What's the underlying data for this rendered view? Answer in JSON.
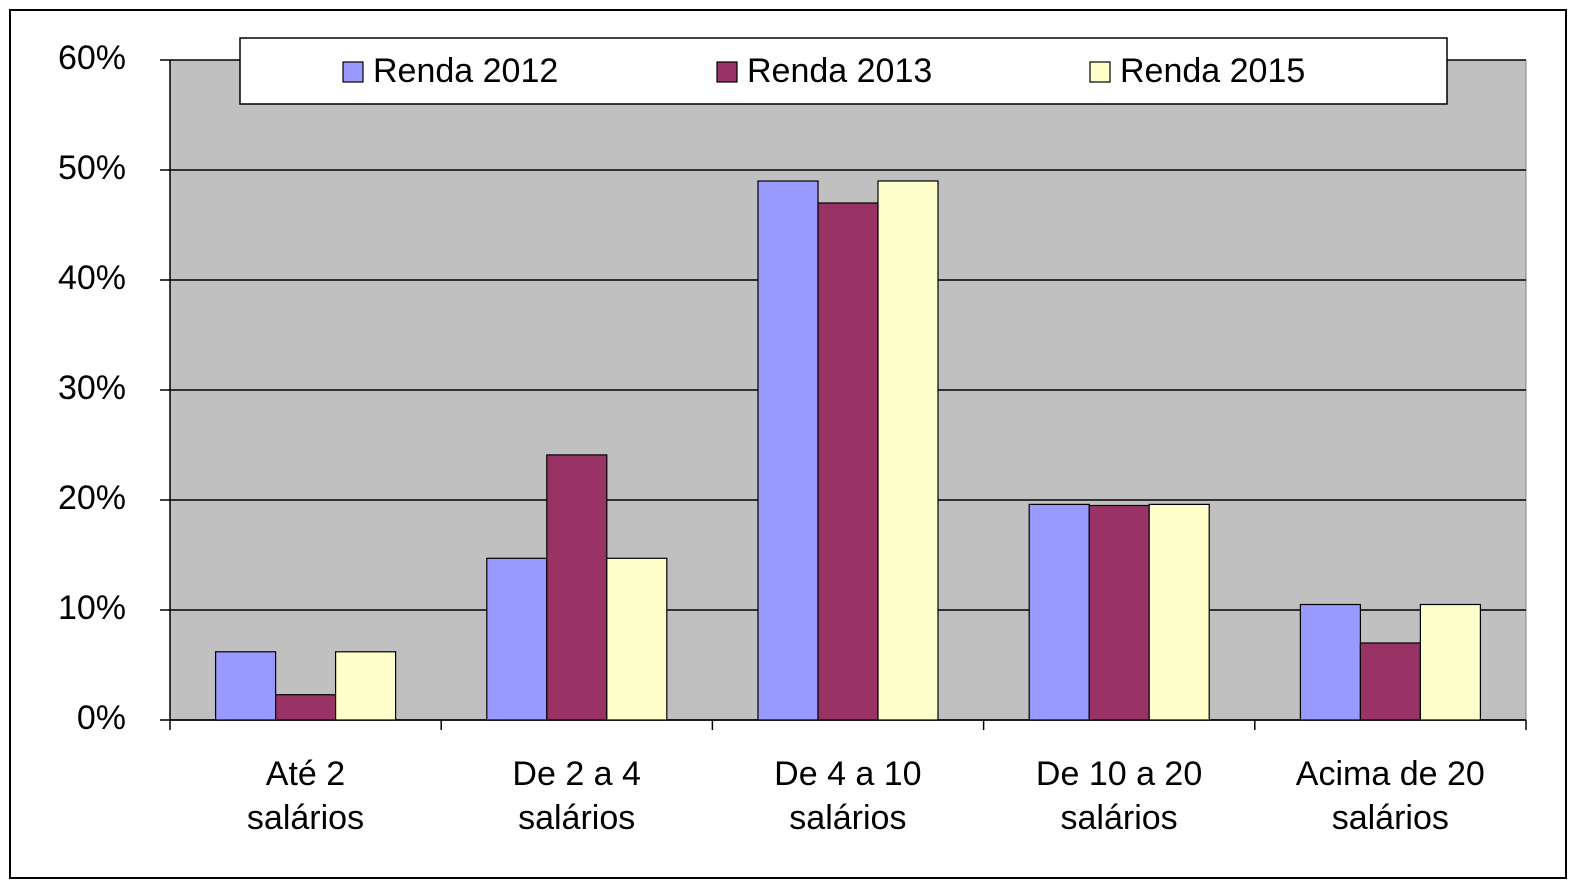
{
  "chart_data": {
    "type": "bar",
    "categories": [
      "Até 2\nsalários",
      "De 2 a 4\nsalários",
      "De 4 a 10\nsalários",
      "De 10 a 20\nsalários",
      "Acima de 20\nsalários"
    ],
    "series": [
      {
        "name": "Renda 2012",
        "color": "#9999ff",
        "values": [
          6.2,
          14.7,
          49,
          19.6,
          10.5
        ]
      },
      {
        "name": "Renda 2013",
        "color": "#993366",
        "values": [
          2.3,
          24.1,
          47,
          19.5,
          7
        ]
      },
      {
        "name": "Renda 2015",
        "color": "#ffffcc",
        "values": [
          6.2,
          14.7,
          49,
          19.6,
          10.5
        ]
      }
    ],
    "ylim": [
      0,
      60
    ],
    "yticks": [
      {
        "value": 0,
        "label": "0%"
      },
      {
        "value": 10,
        "label": "10%"
      },
      {
        "value": 20,
        "label": "20%"
      },
      {
        "value": 30,
        "label": "30%"
      },
      {
        "value": 40,
        "label": "40%"
      },
      {
        "value": 50,
        "label": "50%"
      },
      {
        "value": 60,
        "label": "60%"
      }
    ],
    "grid": true,
    "legend": "top"
  }
}
